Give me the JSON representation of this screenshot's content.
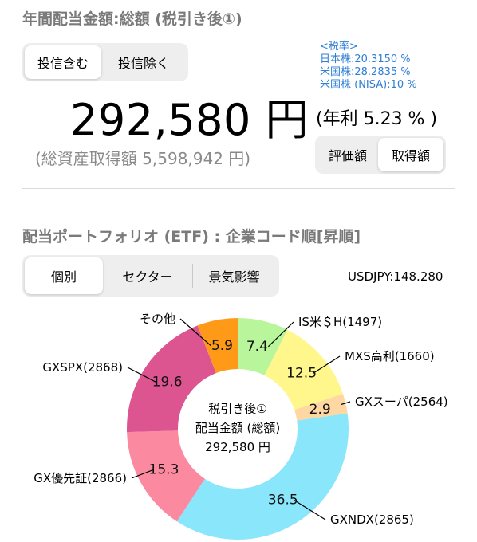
{
  "header": {
    "title": "年間配当金額:総額 (税引き後①)"
  },
  "summary": {
    "toggle": {
      "include_label": "投信含む",
      "exclude_label": "投信除く"
    },
    "tax_notes": [
      "<税率>",
      "日本株:20.3150 %",
      "米国株:28.2835 %",
      "米国株 (NISA):10 %"
    ],
    "dividend_amount": "292,580 円",
    "yield_text": "(年利 5.23 % )",
    "asset_text": "(総資産取得額 5,598,942 円)",
    "valuation_toggle": {
      "eval_label": "評価額",
      "cost_label": "取得額"
    }
  },
  "portfolio": {
    "title": "配当ポートフォリオ (ETF) : 企業コード順[昇順]",
    "tabs": [
      "個別",
      "セクター",
      "景気影響"
    ],
    "fx_rate": "USDJPY:148.280",
    "center_text": [
      "税引き後①",
      "配当金額 (総額)",
      "292,580 円"
    ]
  },
  "chart_data": {
    "type": "pie",
    "donut": true,
    "unit": "%",
    "slices": [
      {
        "name": "IS米＄H(1497)",
        "value": 7.4,
        "value_label": "7.4",
        "color": "#b9f59a"
      },
      {
        "name": "MXS高利(1660)",
        "value": 12.5,
        "value_label": "12.5",
        "color": "#fff78c"
      },
      {
        "name": "GXスーパ(2564)",
        "value": 2.9,
        "value_label": "2.9",
        "color": "#ffd7a3"
      },
      {
        "name": "GXNDX(2865)",
        "value": 36.5,
        "value_label": "36.5",
        "color": "#8ae6fb"
      },
      {
        "name": "GX優先証(2866)",
        "value": 15.3,
        "value_label": "15.3",
        "color": "#fb8aa0"
      },
      {
        "name": "GXSPX(2868)",
        "value": 19.6,
        "value_label": "19.6",
        "color": "#dc5591"
      },
      {
        "name": "その他",
        "value": 5.9,
        "value_label": "5.9",
        "color": "#fe9a17"
      }
    ]
  }
}
